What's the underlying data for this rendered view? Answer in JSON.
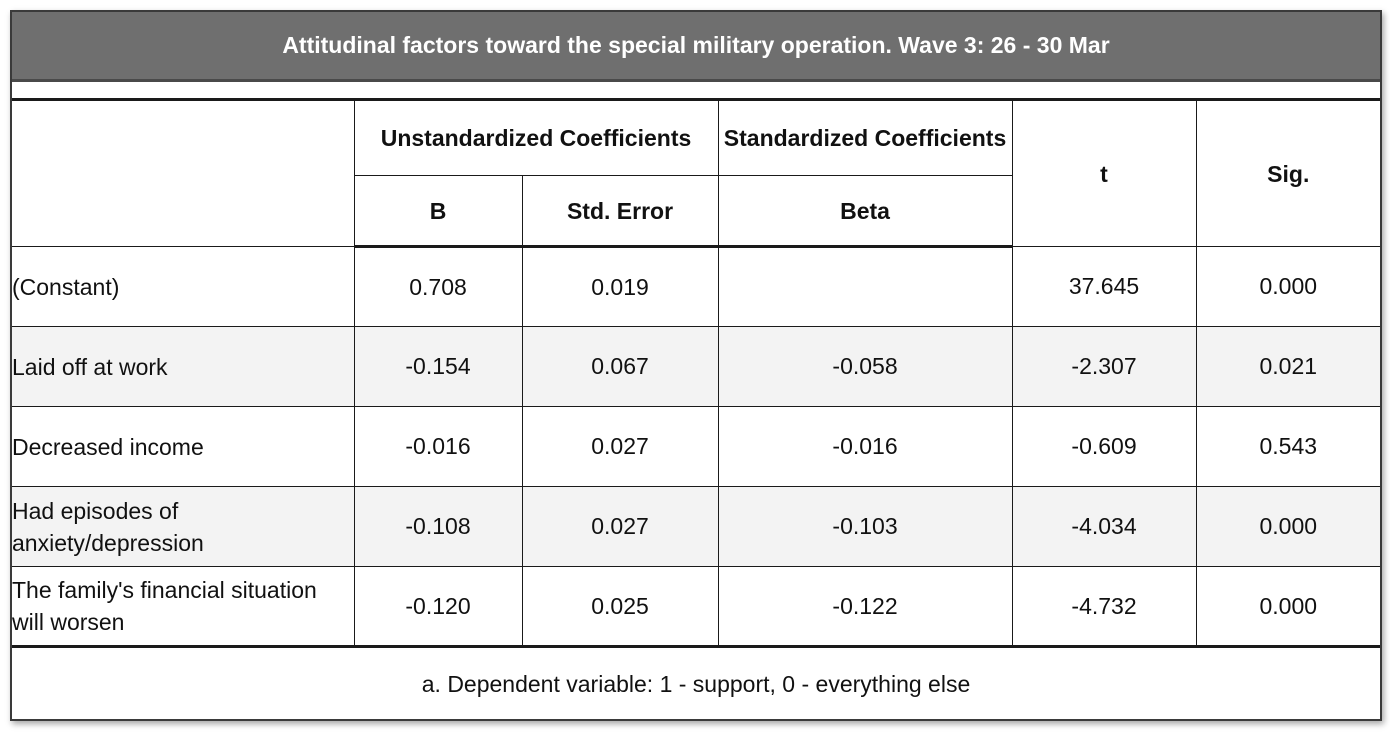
{
  "title": "Attitudinal factors toward the special military operation. Wave 3: 26 - 30 Mar",
  "header": {
    "group_unstd": "Unstandardized Coefficients",
    "group_std": "Standardized Coefficients",
    "col_b": "B",
    "col_se": "Std. Error",
    "col_beta": "Beta",
    "col_t": "t",
    "col_sig": "Sig."
  },
  "rows": [
    {
      "label": "(Constant)",
      "b": "0.708",
      "se": "0.019",
      "beta": "",
      "t": "37.645",
      "sig": "0.000"
    },
    {
      "label": "Laid off at work",
      "b": "-0.154",
      "se": "0.067",
      "beta": "-0.058",
      "t": "-2.307",
      "sig": "0.021"
    },
    {
      "label": "Decreased income",
      "b": "-0.016",
      "se": "0.027",
      "beta": "-0.016",
      "t": "-0.609",
      "sig": "0.543"
    },
    {
      "label": "Had episodes of anxiety/depression",
      "b": "-0.108",
      "se": "0.027",
      "beta": "-0.103",
      "t": "-4.034",
      "sig": "0.000"
    },
    {
      "label": "The family's financial situation will worsen",
      "b": "-0.120",
      "se": "0.025",
      "beta": "-0.122",
      "t": "-4.732",
      "sig": "0.000"
    }
  ],
  "footnote": "a. Dependent variable: 1 - support, 0 - everything else"
}
